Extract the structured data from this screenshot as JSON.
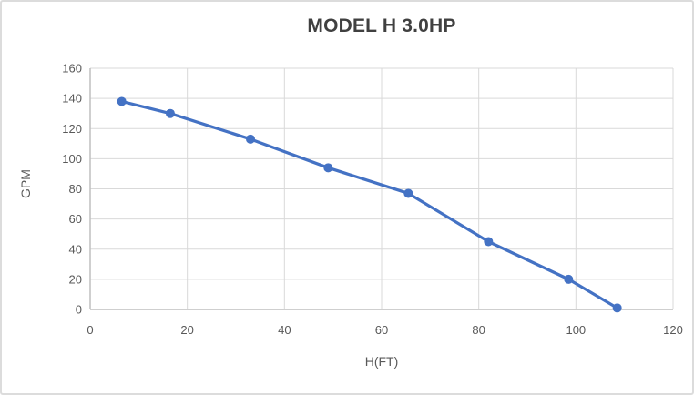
{
  "window": {
    "background_color": "#FFFFFF",
    "border_color": "#DCDCDC"
  },
  "chart_data": {
    "type": "line",
    "title": "MODEL H 3.0HP",
    "xlabel": "H(FT)",
    "ylabel": "GPM",
    "x": [
      6.5,
      16.5,
      33,
      49,
      65.5,
      82,
      98.5,
      108.5
    ],
    "y": [
      138,
      130,
      113,
      94,
      77,
      45,
      20,
      1
    ],
    "xlim": [
      0,
      120
    ],
    "ylim": [
      0,
      160
    ],
    "x_ticks": [
      0,
      20,
      40,
      60,
      80,
      100,
      120
    ],
    "y_ticks": [
      0,
      20,
      40,
      60,
      80,
      100,
      120,
      140,
      160
    ],
    "grid": true,
    "legend": false,
    "series_color": "#4472C4",
    "grid_color": "#D9D9D9",
    "axis_color": "#BFBFBF",
    "tick_color": "#595959",
    "title_color": "#404040",
    "marker": "circle",
    "marker_radius": 5,
    "line_width": 3.25,
    "tick_font_size": 13
  }
}
